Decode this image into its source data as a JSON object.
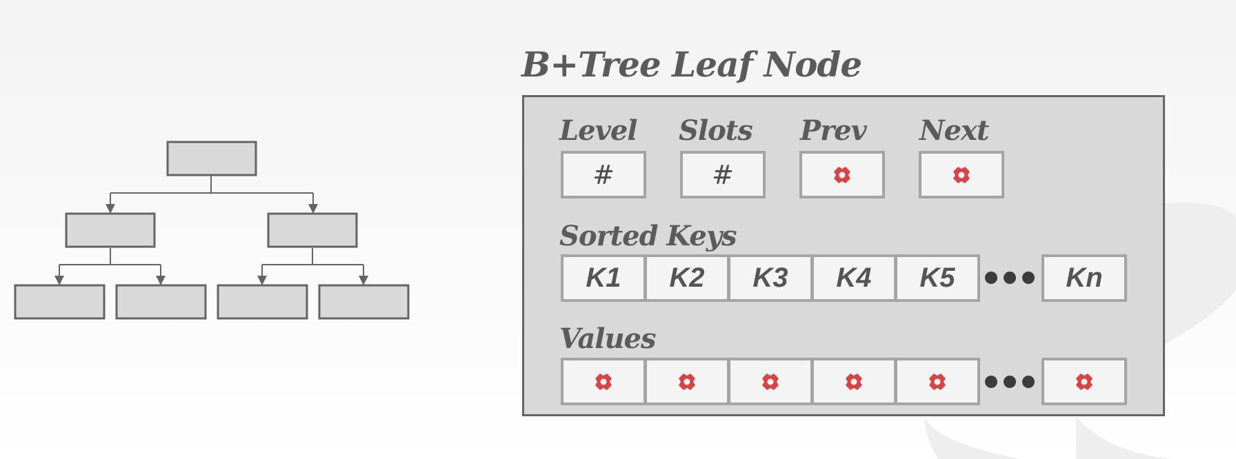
{
  "title": "B+Tree Leaf Node",
  "header_fields": [
    {
      "label": "Level",
      "value": "#"
    },
    {
      "label": "Slots",
      "value": "#"
    },
    {
      "label": "Prev",
      "value": "pointer-icon"
    },
    {
      "label": "Next",
      "value": "pointer-icon"
    }
  ],
  "sorted_keys": {
    "label": "Sorted Keys",
    "keys": [
      "K1",
      "K2",
      "K3",
      "K4",
      "K5"
    ],
    "last_key": "Kn"
  },
  "values": {
    "label": "Values",
    "count": 5,
    "icon": "pointer-icon"
  },
  "colors": {
    "pointer": "#d64545",
    "box_border": "#a4a4a4",
    "node_fill": "#d9d9d9",
    "tree_fill": "#d9d9d9",
    "tree_stroke": "#646464"
  }
}
